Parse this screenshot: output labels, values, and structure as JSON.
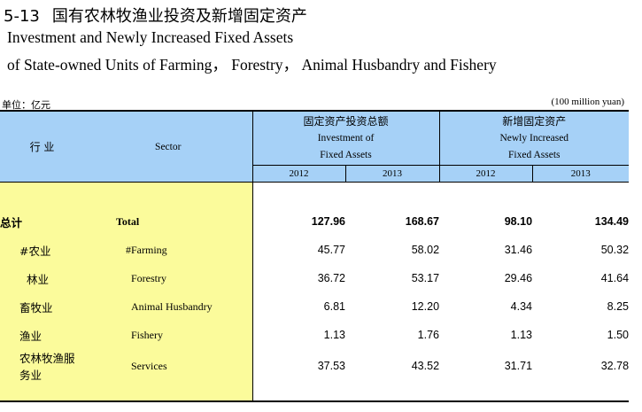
{
  "title": {
    "number": "5-13",
    "cn": "国有农林牧渔业投资及新增固定资产",
    "en_line1": "Investment and Newly Increased Fixed Assets",
    "en_line2": "of State-owned Units of Farming， Forestry， Animal Husbandry and Fishery"
  },
  "unit": {
    "cn": "单位：亿元",
    "en": "(100 million yuan)"
  },
  "header": {
    "sector_cn": "行 业",
    "sector_en": "Sector",
    "group1": {
      "cn": "固定资产投资总额",
      "en1": "Investment of",
      "en2": "Fixed Assets"
    },
    "group2": {
      "cn": "新增固定资产",
      "en1": "Newly Increased",
      "en2": "Fixed Assets"
    },
    "years": [
      "2012",
      "2013",
      "2012",
      "2013"
    ]
  },
  "rows": [
    {
      "cn": "总计",
      "en": "Total",
      "v": [
        "127.96",
        "168.67",
        "98.10",
        "134.49"
      ]
    },
    {
      "cn": "#农业",
      "en": "#Farming",
      "v": [
        "45.77",
        "58.02",
        "31.46",
        "50.32"
      ]
    },
    {
      "cn": "林业",
      "en": "Forestry",
      "v": [
        "36.72",
        "53.17",
        "29.46",
        "41.64"
      ]
    },
    {
      "cn": "畜牧业",
      "en": "Animal Husbandry",
      "v": [
        "6.81",
        "12.20",
        "4.34",
        "8.25"
      ]
    },
    {
      "cn": "渔业",
      "en": "Fishery",
      "v": [
        "1.13",
        "1.76",
        "1.13",
        "1.50"
      ]
    },
    {
      "cn": "农林牧渔服务业",
      "en": "Services",
      "v": [
        "37.53",
        "43.52",
        "31.71",
        "32.78"
      ]
    }
  ]
}
